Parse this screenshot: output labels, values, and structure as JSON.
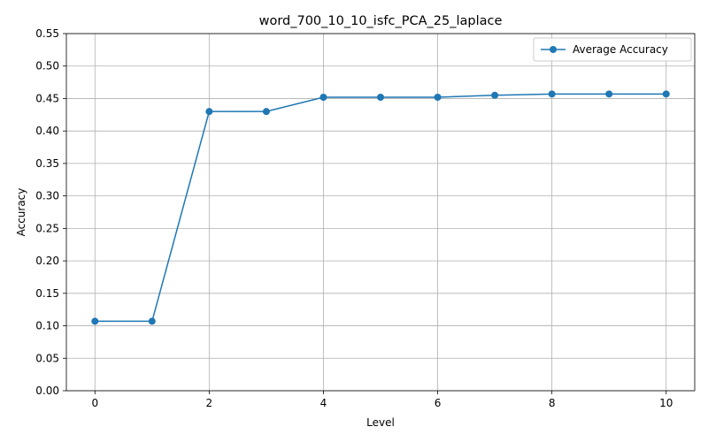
{
  "chart_data": {
    "type": "line",
    "title": "word_700_10_10_isfc_PCA_25_laplace",
    "xlabel": "Level",
    "ylabel": "Accuracy",
    "xlim": [
      -0.5,
      10.5
    ],
    "ylim": [
      0.0,
      0.55
    ],
    "xticks": [
      0,
      2,
      4,
      6,
      8,
      10
    ],
    "xtick_labels": [
      "0",
      "2",
      "4",
      "6",
      "8",
      "10"
    ],
    "yticks": [
      0.0,
      0.05,
      0.1,
      0.15,
      0.2,
      0.25,
      0.3,
      0.35,
      0.4,
      0.45,
      0.5,
      0.55
    ],
    "ytick_labels": [
      "0.00",
      "0.05",
      "0.10",
      "0.15",
      "0.20",
      "0.25",
      "0.30",
      "0.35",
      "0.40",
      "0.45",
      "0.50",
      "0.55"
    ],
    "grid": true,
    "legend_position": "top-right",
    "series": [
      {
        "name": "Average Accuracy",
        "color": "#1f77b4",
        "marker": "circle",
        "x": [
          0,
          1,
          2,
          3,
          4,
          5,
          6,
          7,
          8,
          9,
          10
        ],
        "y": [
          0.107,
          0.107,
          0.43,
          0.43,
          0.452,
          0.452,
          0.452,
          0.455,
          0.457,
          0.457,
          0.457
        ]
      }
    ]
  }
}
